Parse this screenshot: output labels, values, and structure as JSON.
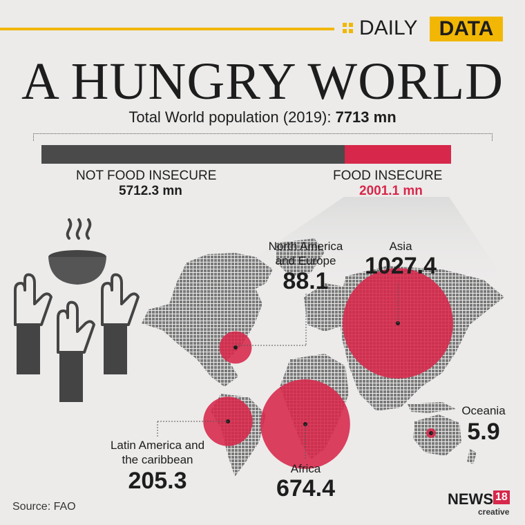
{
  "colors": {
    "accent_yellow": "#f2b705",
    "insecure_red": "#d7274a",
    "secure_gray": "#4a4a4a",
    "background": "#ecebea"
  },
  "badge": {
    "daily": "DAILY",
    "data": "DATA"
  },
  "title": "A HUNGRY WORLD",
  "subtitle": {
    "label": "Total World population (2019):",
    "value": "7713 mn"
  },
  "chart_data": {
    "type": "bar",
    "title": "Total World population (2019): 7713 mn",
    "series": [
      {
        "name": "NOT FOOD INSECURE",
        "value": 5712.3,
        "display": "5712.3 mn"
      },
      {
        "name": "FOOD INSECURE",
        "value": 2001.1,
        "display": "2001.1 mn"
      }
    ],
    "total": 7713
  },
  "regions": [
    {
      "id": "north-america-europe",
      "name_line1": "North America",
      "name_line2": "and Europe",
      "value": 88.1,
      "display": "88.1"
    },
    {
      "id": "asia",
      "name_line1": "Asia",
      "name_line2": "",
      "value": 1027.4,
      "display": "1027.4"
    },
    {
      "id": "oceania",
      "name_line1": "Oceania",
      "name_line2": "",
      "value": 5.9,
      "display": "5.9"
    },
    {
      "id": "latin-america",
      "name_line1": "Latin America and",
      "name_line2": "the caribbean",
      "value": 205.3,
      "display": "205.3"
    },
    {
      "id": "africa",
      "name_line1": "Africa",
      "name_line2": "",
      "value": 674.4,
      "display": "674.4"
    }
  ],
  "source": "Source: FAO",
  "logo": {
    "brand": "NEWS",
    "number": "18",
    "sub": "creative"
  }
}
